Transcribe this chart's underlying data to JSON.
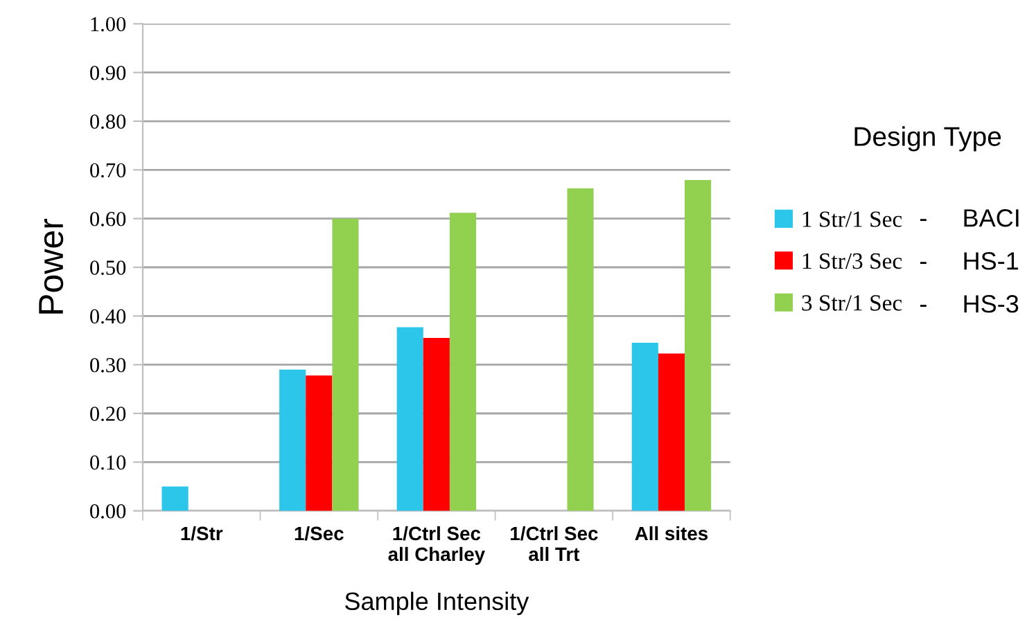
{
  "chart_data": {
    "type": "bar",
    "xlabel": "Sample Intensity",
    "ylabel": "Power",
    "legend_title": "Design Type",
    "categories": [
      "1/Str",
      "1/Sec",
      "1/Ctrl Sec\nall Charley",
      "1/Ctrl Sec\nall Trt",
      "All sites"
    ],
    "series": [
      {
        "name": "1 Str/1 Sec",
        "color": "#2cc6ea",
        "values": [
          0.05,
          0.29,
          0.377,
          null,
          0.345
        ]
      },
      {
        "name": "1 Str/3 Sec",
        "color": "#ff0000",
        "values": [
          null,
          0.278,
          0.355,
          null,
          0.323
        ]
      },
      {
        "name": "3 Str/1 Sec",
        "color": "#92d050",
        "values": [
          null,
          0.6,
          0.612,
          0.662,
          0.679
        ]
      }
    ],
    "annotations": [
      "-     BACI",
      "-     HS-1",
      "-     HS-3"
    ],
    "ylim": [
      0,
      1
    ],
    "yticks": [
      {
        "value": 0,
        "label": "0.00"
      },
      {
        "value": 0.1,
        "label": "0.10"
      },
      {
        "value": 0.2,
        "label": "0.20"
      },
      {
        "value": 0.3,
        "label": "0.30"
      },
      {
        "value": 0.4,
        "label": "0.40"
      },
      {
        "value": 0.5,
        "label": "0.50"
      },
      {
        "value": 0.6,
        "label": "0.60"
      },
      {
        "value": 0.7,
        "label": "0.70"
      },
      {
        "value": 0.8,
        "label": "0.80"
      },
      {
        "value": 0.9,
        "label": "0.90"
      },
      {
        "value": 1,
        "label": "1.00"
      }
    ],
    "grid": "y",
    "legend": "right"
  }
}
